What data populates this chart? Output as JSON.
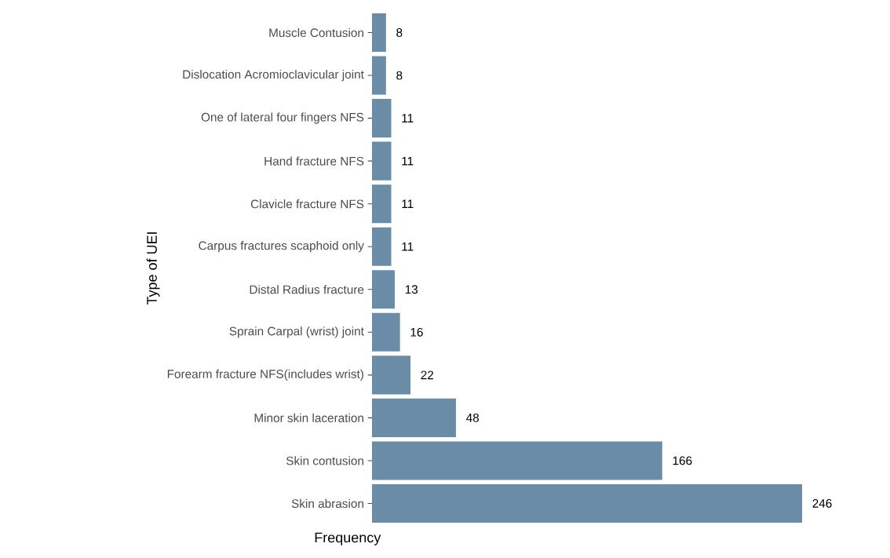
{
  "chart_data": {
    "type": "bar",
    "orientation": "horizontal",
    "xlabel": "Frequency",
    "ylabel": "Type of UEI",
    "categories": [
      "Muscle Contusion",
      "Dislocation Acromioclavicular joint",
      "One of lateral four fingers NFS",
      "Hand fracture NFS",
      "Clavicle fracture NFS",
      "Carpus fractures scaphoid only",
      "Distal Radius fracture",
      "Sprain Carpal (wrist) joint",
      "Forearm fracture NFS(includes wrist)",
      "Minor skin laceration",
      "Skin contusion",
      "Skin abrasion"
    ],
    "values": [
      8,
      8,
      11,
      11,
      11,
      11,
      13,
      16,
      22,
      48,
      166,
      246
    ],
    "data_labels": true,
    "color": "#6a8ca6",
    "tick_labels": "y"
  }
}
